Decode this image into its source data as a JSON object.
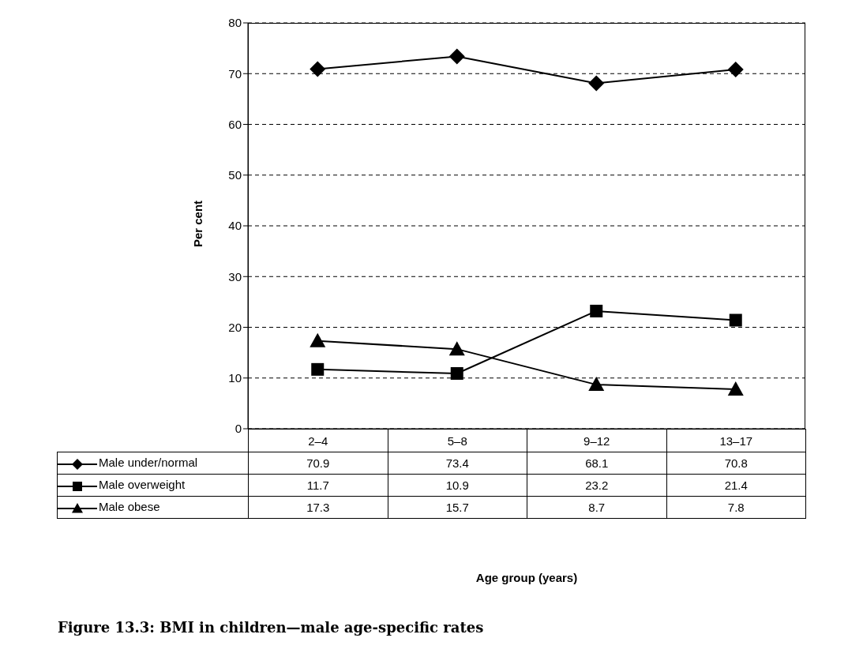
{
  "chart_data": {
    "type": "line",
    "title": "Figure 13.3: BMI in children—male age-specific rates",
    "annotations": [
      "Age group (years)"
    ],
    "ylabel": "Per cent",
    "categories": [
      "2–4",
      "5–8",
      "9–12",
      "13–17"
    ],
    "series": [
      {
        "name": "Male under/normal",
        "color": "#000000",
        "marker": "diamond",
        "values": [
          70.9,
          73.4,
          68.1,
          70.8
        ]
      },
      {
        "name": "Male overweight",
        "color": "#000000",
        "marker": "square",
        "values": [
          11.7,
          10.9,
          23.2,
          21.4
        ]
      },
      {
        "name": "Male obese",
        "color": "#000000",
        "marker": "triangle",
        "values": [
          17.3,
          15.7,
          8.7,
          7.8
        ]
      }
    ],
    "ylim": [
      0,
      80
    ],
    "yticks": [
      0,
      10,
      20,
      30,
      40,
      50,
      60,
      70,
      80
    ],
    "grid": "y",
    "legend": "bottom left",
    "line_style": "solid",
    "data_labels": true
  }
}
